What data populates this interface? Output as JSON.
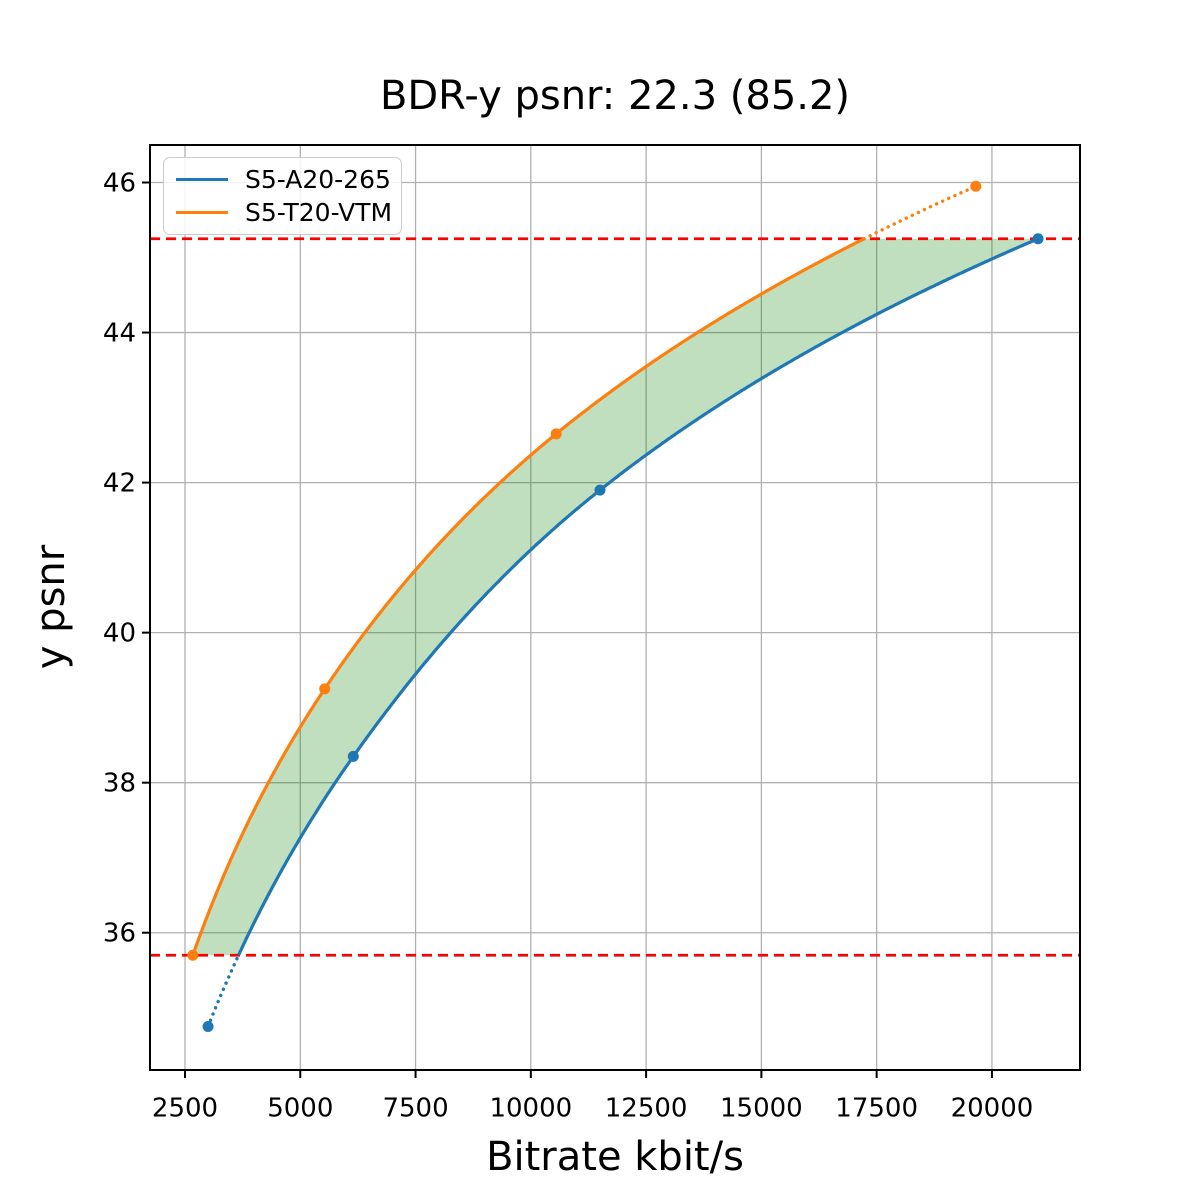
{
  "figure": {
    "background": "#ffffff"
  },
  "chart_data": {
    "type": "line",
    "title": "BDR-y psnr: 22.3 (85.2)",
    "xlabel": "Bitrate kbit/s",
    "ylabel": "y psnr",
    "xlim": [
      1741,
      21910
    ],
    "ylim": [
      34.17,
      46.5
    ],
    "xticks": [
      2500,
      5000,
      7500,
      10000,
      12500,
      15000,
      17500,
      20000
    ],
    "yticks": [
      36,
      38,
      40,
      42,
      44,
      46
    ],
    "grid": true,
    "grid_color": "#b0b0b0",
    "axes_color": "#000000",
    "legend_position": "upper left",
    "interpolation": "pchip-log-bitrate",
    "series": [
      {
        "name": "S5-A20-265",
        "color": "#1f77b4",
        "marker": "o",
        "x": [
          3000,
          6150,
          11500,
          21000
        ],
        "y": [
          34.75,
          38.35,
          41.9,
          45.25
        ]
      },
      {
        "name": "S5-T20-VTM",
        "color": "#ff7f0e",
        "marker": "o",
        "x": [
          2670,
          5530,
          10550,
          19650
        ],
        "y": [
          35.7,
          39.25,
          42.65,
          45.95
        ]
      }
    ],
    "overlap_hlines": {
      "color": "#ff0000",
      "style": "dashed",
      "values": [
        35.7,
        45.25
      ]
    },
    "shaded_region": {
      "between": [
        "S5-T20-VTM",
        "S5-A20-265"
      ],
      "color": "#008000",
      "opacity": 0.25
    }
  }
}
